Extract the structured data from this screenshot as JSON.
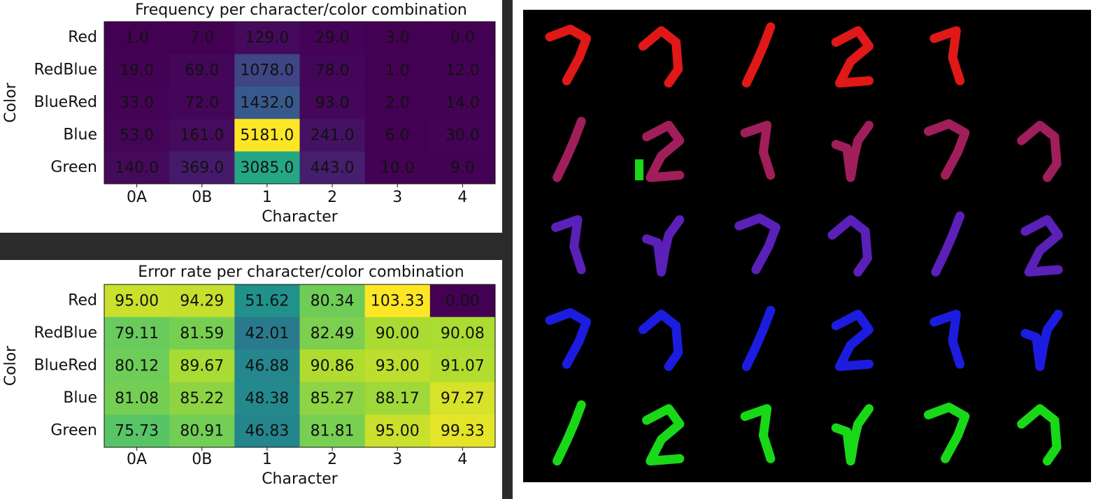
{
  "chart_data": [
    {
      "type": "heatmap",
      "title": "Frequency per character/color combination",
      "xlabel": "Character",
      "ylabel": "Color",
      "categories": [
        "0A",
        "0B",
        "1",
        "2",
        "3",
        "4"
      ],
      "rows": [
        "Red",
        "RedBlue",
        "BlueRed",
        "Blue",
        "Green"
      ],
      "colormap": "viridis",
      "values": [
        [
          1,
          7,
          129,
          29,
          3,
          0
        ],
        [
          19,
          69,
          1078,
          78,
          1,
          12
        ],
        [
          33,
          72,
          1432,
          93,
          2,
          14
        ],
        [
          53,
          161,
          5181,
          241,
          6,
          30
        ],
        [
          140,
          369,
          3085,
          443,
          10,
          9
        ]
      ],
      "value_labels": [
        [
          "1.0",
          "7.0",
          "129.0",
          "29.0",
          "3.0",
          "0.0"
        ],
        [
          "19.0",
          "69.0",
          "1078.0",
          "78.0",
          "1.0",
          "12.0"
        ],
        [
          "33.0",
          "72.0",
          "1432.0",
          "93.0",
          "2.0",
          "14.0"
        ],
        [
          "53.0",
          "161.0",
          "5181.0",
          "241.0",
          "6.0",
          "30.0"
        ],
        [
          "140.0",
          "369.0",
          "3085.0",
          "443.0",
          "10.0",
          "9.0"
        ]
      ]
    },
    {
      "type": "heatmap",
      "title": "Error rate per character/color combination",
      "xlabel": "Character",
      "ylabel": "Color",
      "categories": [
        "0A",
        "0B",
        "1",
        "2",
        "3",
        "4"
      ],
      "rows": [
        "Red",
        "RedBlue",
        "BlueRed",
        "Blue",
        "Green"
      ],
      "colormap": "viridis",
      "values": [
        [
          95,
          94.29,
          51.62,
          80.34,
          103.33,
          0
        ],
        [
          79.11,
          81.59,
          42.01,
          82.49,
          90,
          90.08
        ],
        [
          80.12,
          89.67,
          46.88,
          90.86,
          93,
          91.07
        ],
        [
          81.08,
          85.22,
          48.38,
          85.27,
          88.17,
          97.27
        ],
        [
          75.73,
          80.91,
          46.83,
          81.81,
          95,
          99.33
        ]
      ],
      "value_labels": [
        [
          "95.00",
          "94.29",
          "51.62",
          "80.34",
          "103.33",
          "0.00"
        ],
        [
          "79.11",
          "81.59",
          "42.01",
          "82.49",
          "90.00",
          "90.08"
        ],
        [
          "80.12",
          "89.67",
          "46.88",
          "90.86",
          "93.00",
          "91.07"
        ],
        [
          "81.08",
          "85.22",
          "48.38",
          "85.27",
          "88.17",
          "97.27"
        ],
        [
          "75.73",
          "80.91",
          "46.83",
          "81.81",
          "95.00",
          "99.33"
        ]
      ]
    }
  ]
}
